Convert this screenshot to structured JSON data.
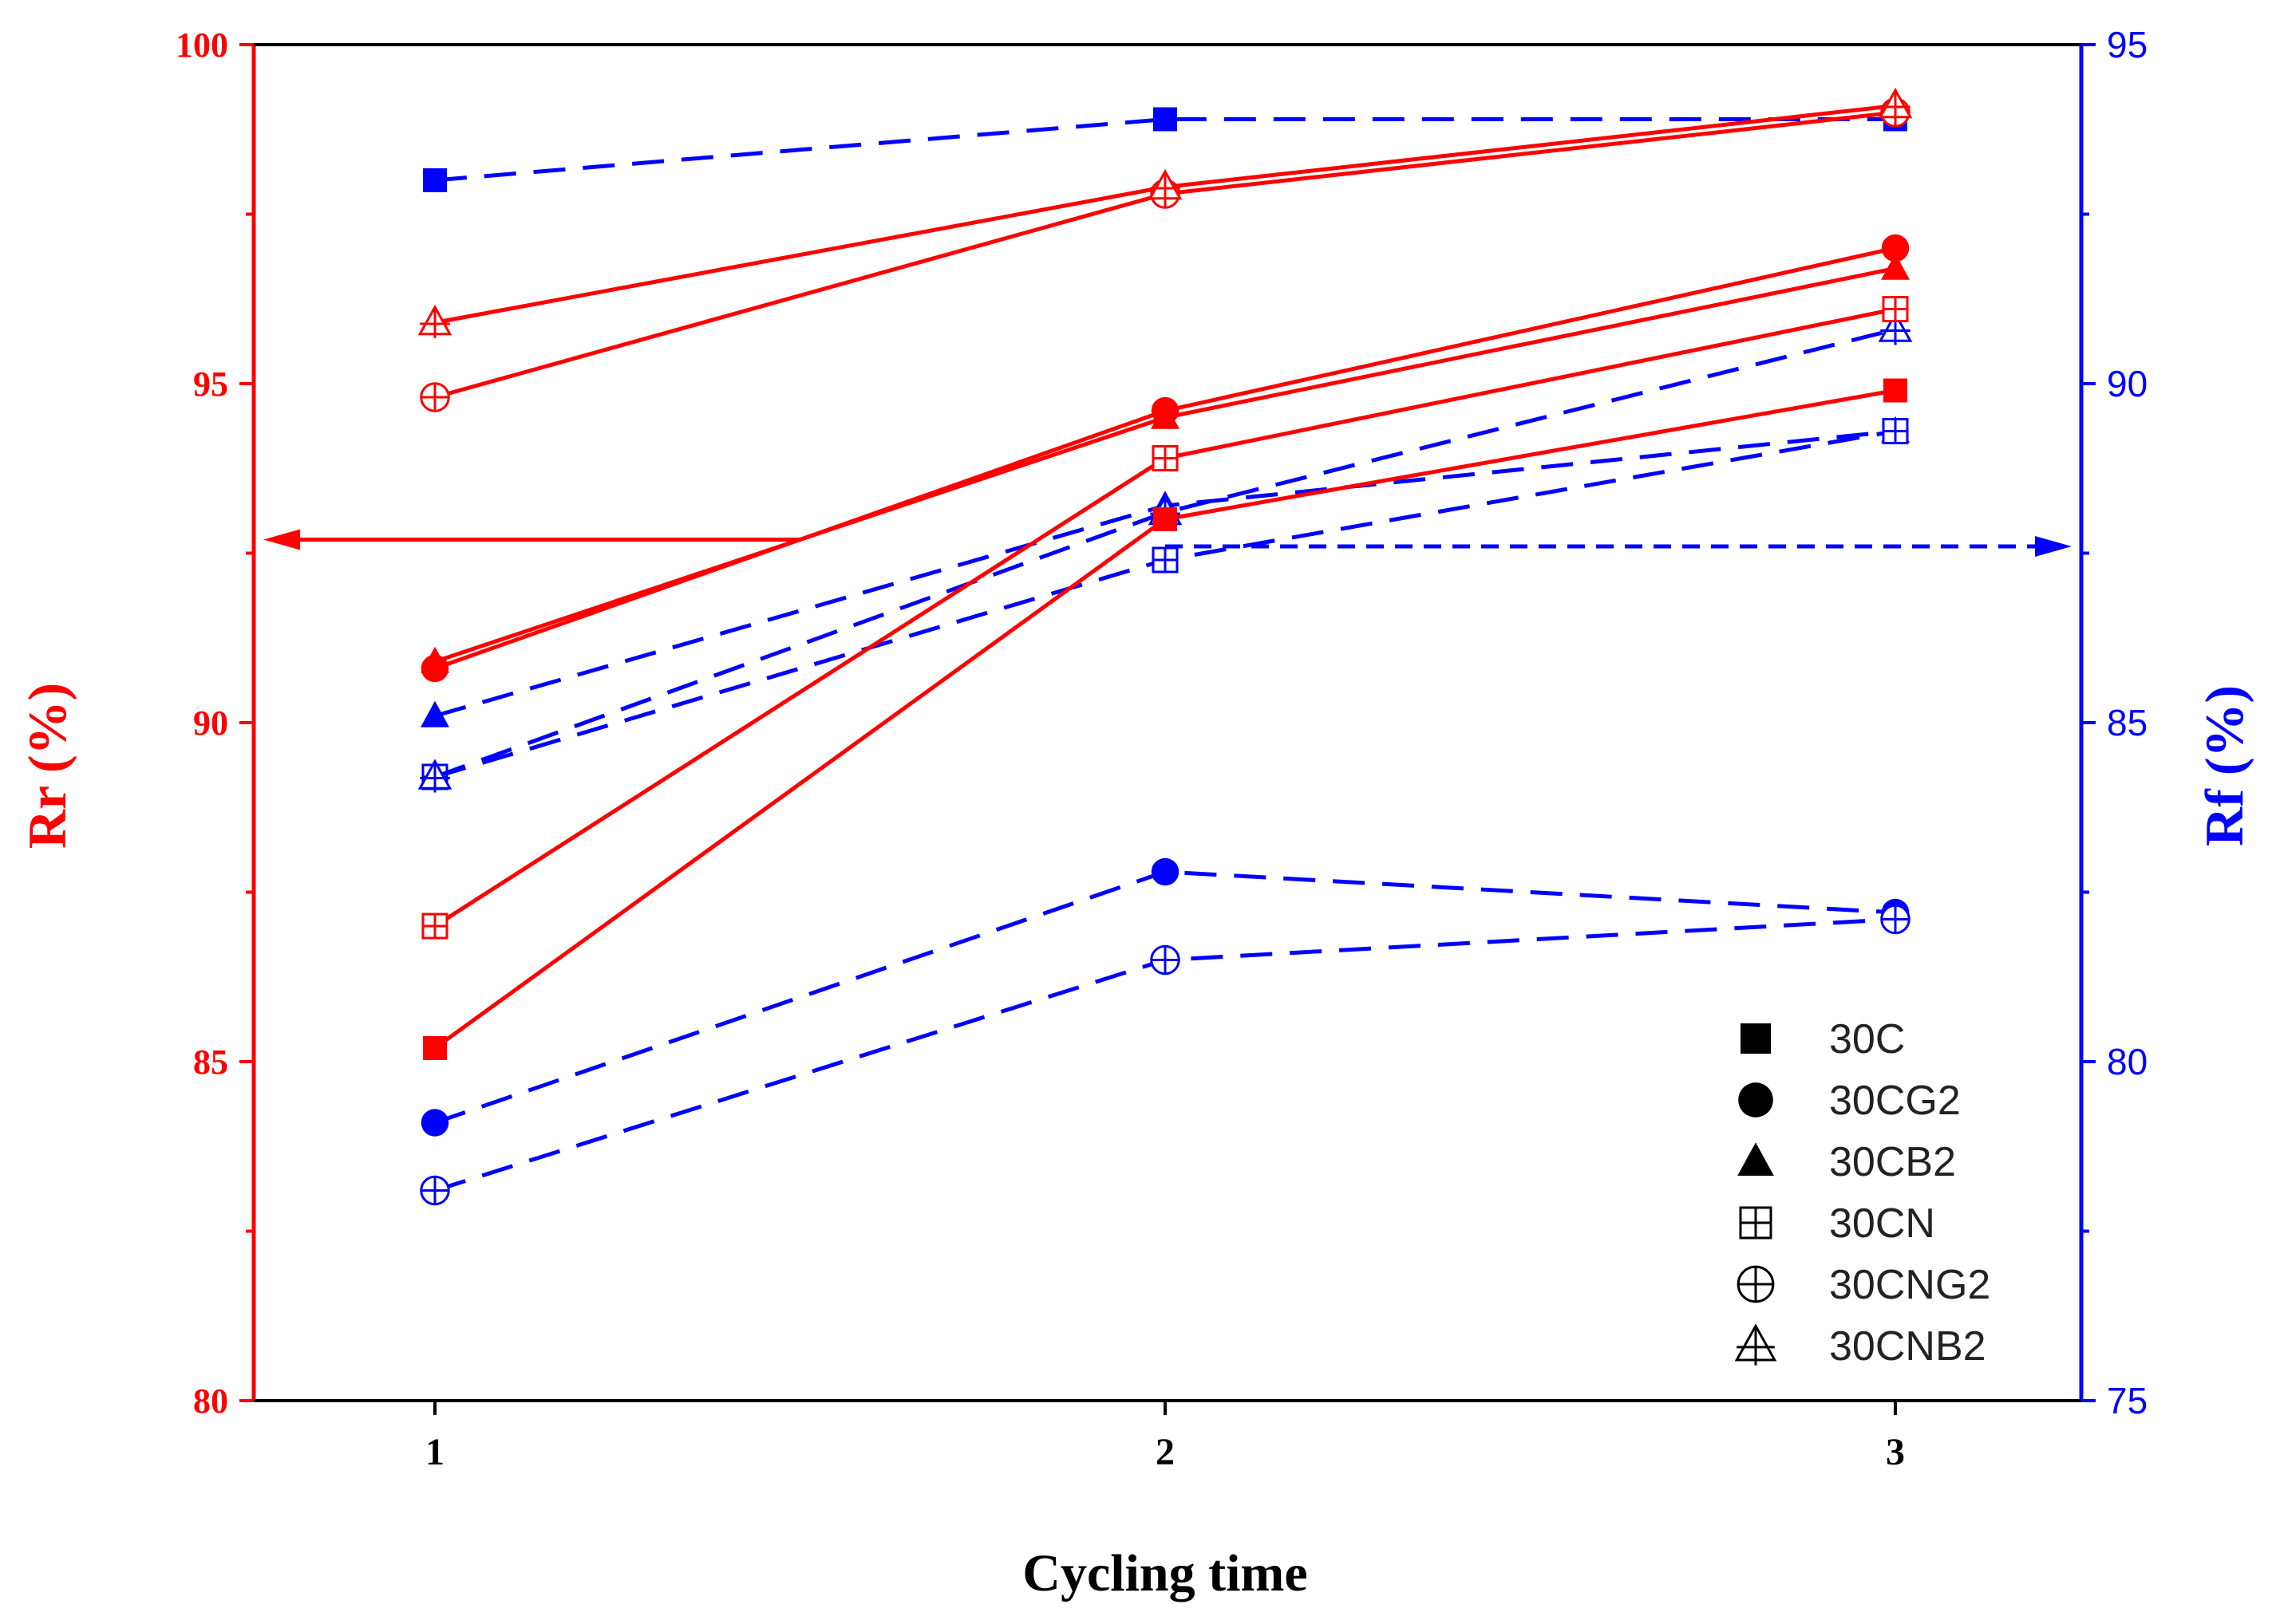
{
  "chart_data": {
    "type": "line",
    "title": "",
    "xlabel": "Cycling time",
    "ylabel_left": "Rr (%)",
    "ylabel_right": "Rf (%)",
    "x": [
      1,
      2,
      3
    ],
    "x_tick_labels": [
      "1",
      "2",
      "3"
    ],
    "ylim_left": [
      80,
      100
    ],
    "ylim_right": [
      75,
      95
    ],
    "y_ticks_left": [
      "80",
      "85",
      "90",
      "95",
      "100"
    ],
    "y_ticks_right": [
      "75",
      "80",
      "85",
      "90",
      "95"
    ],
    "grid": false,
    "legend_position": "bottom-right",
    "colors": {
      "rr": "#ff0000",
      "rf": "#0000ff",
      "legend": "#000000"
    },
    "arrows": [
      {
        "axis": "left",
        "direction": "left",
        "from_x": 1.5,
        "y": 92.7
      },
      {
        "axis": "right",
        "direction": "right",
        "from_x": 2.0,
        "y": 87.6
      }
    ],
    "legend": [
      {
        "name": "30C",
        "marker": "square"
      },
      {
        "name": "30CG2",
        "marker": "circle"
      },
      {
        "name": "30CB2",
        "marker": "triangle"
      },
      {
        "name": "30CN",
        "marker": "square-cross"
      },
      {
        "name": "30CNG2",
        "marker": "circle-cross"
      },
      {
        "name": "30CNB2",
        "marker": "triangle-cross"
      }
    ],
    "series": [
      {
        "name": "30C",
        "metric": "Rr",
        "axis": "left",
        "marker": "square",
        "style": "solid",
        "values": [
          85.2,
          93.0,
          94.9
        ]
      },
      {
        "name": "30CG2",
        "metric": "Rr",
        "axis": "left",
        "marker": "circle",
        "style": "solid",
        "values": [
          90.8,
          94.6,
          97.0
        ]
      },
      {
        "name": "30CB2",
        "metric": "Rr",
        "axis": "left",
        "marker": "triangle",
        "style": "solid",
        "values": [
          90.9,
          94.5,
          96.7
        ]
      },
      {
        "name": "30CN",
        "metric": "Rr",
        "axis": "left",
        "marker": "square-cross",
        "style": "solid",
        "values": [
          87.0,
          93.9,
          96.1
        ]
      },
      {
        "name": "30CNG2",
        "metric": "Rr",
        "axis": "left",
        "marker": "circle-cross",
        "style": "solid",
        "values": [
          94.8,
          97.8,
          99.0
        ]
      },
      {
        "name": "30CNB2",
        "metric": "Rr",
        "axis": "left",
        "marker": "triangle-cross",
        "style": "solid",
        "values": [
          95.9,
          97.9,
          99.1
        ]
      },
      {
        "name": "30C",
        "metric": "Rf",
        "axis": "right",
        "marker": "square",
        "style": "dashed",
        "values": [
          93.0,
          93.9,
          93.9
        ]
      },
      {
        "name": "30CG2",
        "metric": "Rf",
        "axis": "right",
        "marker": "circle",
        "style": "dashed",
        "values": [
          79.1,
          82.8,
          82.2
        ]
      },
      {
        "name": "30CB2",
        "metric": "Rf",
        "axis": "right",
        "marker": "triangle",
        "style": "dashed",
        "values": [
          85.1,
          88.2,
          89.3
        ]
      },
      {
        "name": "30CN",
        "metric": "Rf",
        "axis": "right",
        "marker": "square-cross",
        "style": "dashed",
        "values": [
          84.2,
          87.4,
          89.3
        ]
      },
      {
        "name": "30CNG2",
        "metric": "Rf",
        "axis": "right",
        "marker": "circle-cross",
        "style": "dashed",
        "values": [
          78.1,
          81.5,
          82.1
        ]
      },
      {
        "name": "30CNB2",
        "metric": "Rf",
        "axis": "right",
        "marker": "triangle-cross",
        "style": "dashed",
        "values": [
          84.2,
          88.1,
          90.8
        ]
      }
    ]
  }
}
